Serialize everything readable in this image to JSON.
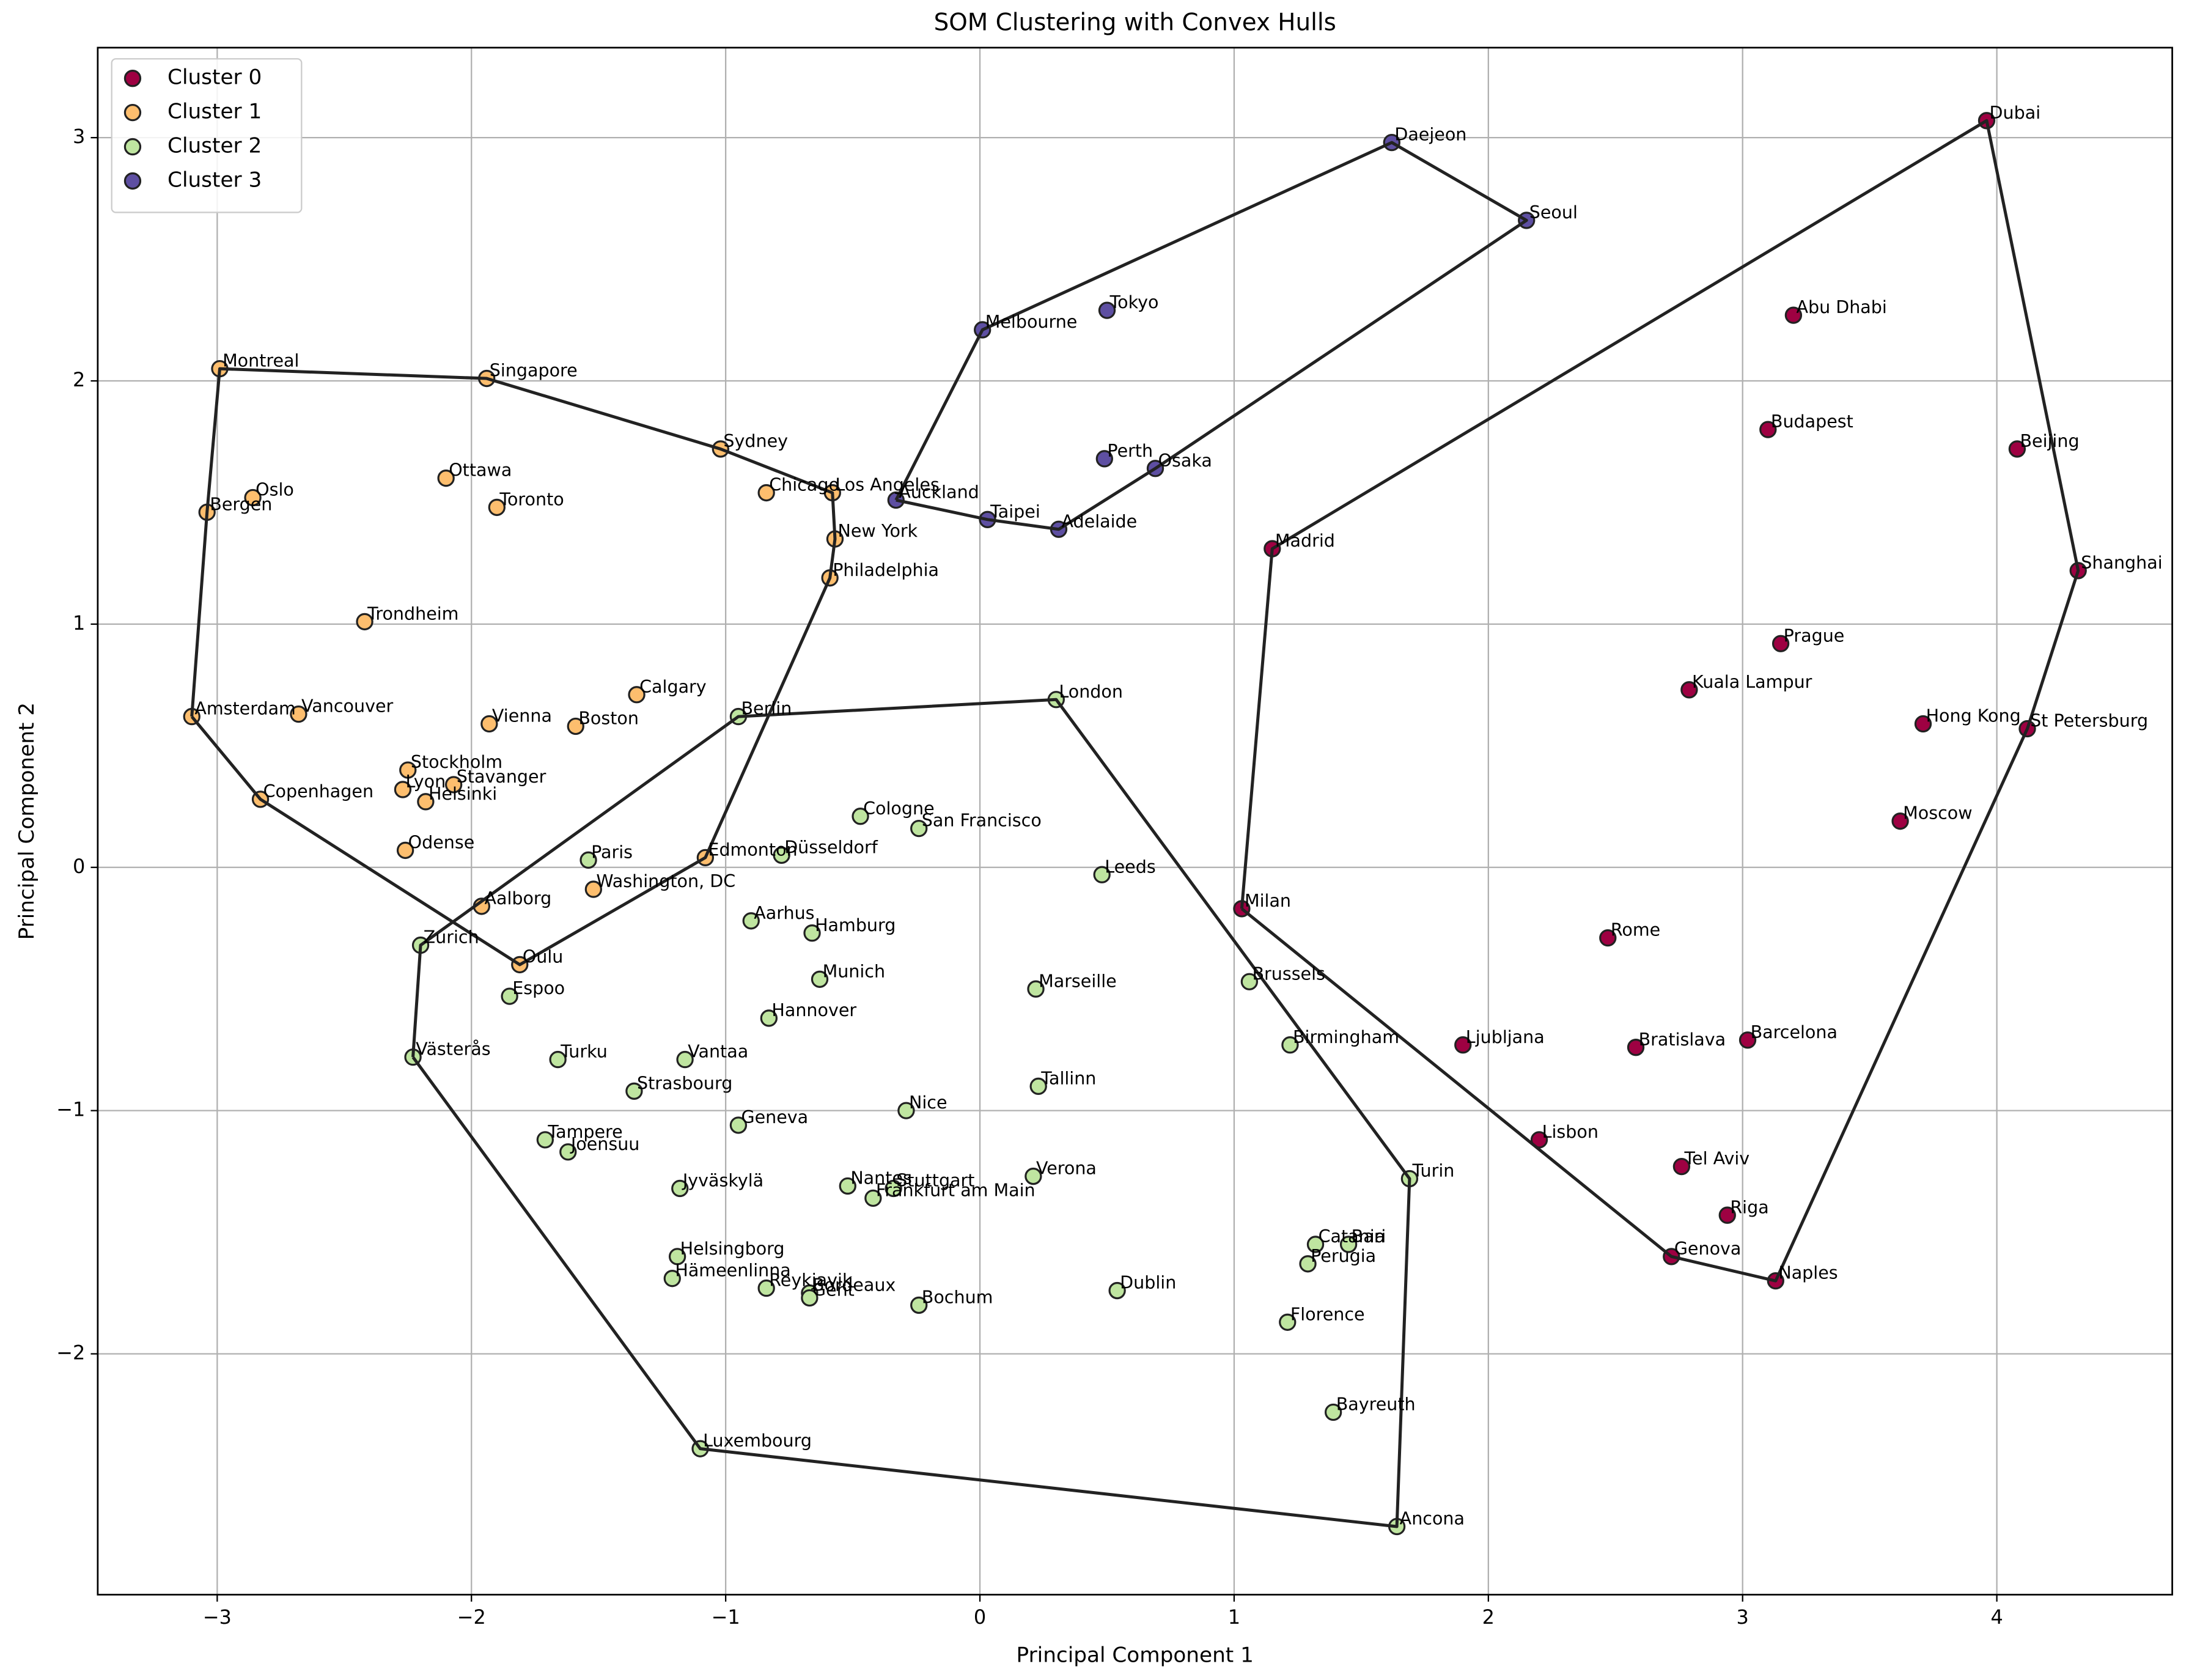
{
  "chart_data": {
    "type": "scatter",
    "title": "SOM Clustering with Convex Hulls",
    "x_label": "Principal Component 1",
    "y_label": "Principal Component 2",
    "xlim": [
      -3.47,
      4.69
    ],
    "ylim": [
      -2.99,
      3.37
    ],
    "xticks": [
      {
        "value": -3,
        "label": "−3"
      },
      {
        "value": -2,
        "label": "−2"
      },
      {
        "value": -1,
        "label": "−1"
      },
      0,
      1,
      2,
      3,
      4
    ],
    "yticks": [
      {
        "value": -2,
        "label": "−2"
      },
      {
        "value": -1,
        "label": "−1"
      },
      0,
      1,
      2,
      3
    ],
    "grid": true,
    "legend": "upper left",
    "hull_color": "#222222",
    "series": [
      {
        "name": "Cluster 0",
        "color": "#9e0142",
        "labels": [
          "Dubai",
          "Abu Dhabi",
          "Budapest",
          "Beijing",
          "Shanghai",
          "Madrid",
          "Prague",
          "Kuala Lampur",
          "Hong Kong",
          "St Petersburg",
          "Moscow",
          "Milan",
          "Rome",
          "Ljubljana",
          "Bratislava",
          "Barcelona",
          "Lisbon",
          "Tel Aviv",
          "Riga",
          "Genova",
          "Naples"
        ],
        "x": [
          3.96,
          3.2,
          3.1,
          4.08,
          4.32,
          1.15,
          3.15,
          2.79,
          3.71,
          4.12,
          3.62,
          1.03,
          2.47,
          1.9,
          2.58,
          3.02,
          2.2,
          2.76,
          2.94,
          2.72,
          3.13
        ],
        "y": [
          3.07,
          2.27,
          1.8,
          1.72,
          1.22,
          1.31,
          0.92,
          0.73,
          0.59,
          0.57,
          0.19,
          -0.17,
          -0.29,
          -0.73,
          -0.74,
          -0.71,
          -1.12,
          -1.23,
          -1.43,
          -1.6,
          -1.7
        ]
      },
      {
        "name": "Cluster 1",
        "color": "#fdbe6e",
        "labels": [
          "Montreal",
          "Singapore",
          "Sydney",
          "Oslo",
          "Bergen",
          "Ottawa",
          "Toronto",
          "Chicago",
          "Los Angeles",
          "New York",
          "Philadelphia",
          "Trondheim",
          "Calgary",
          "Amsterdam",
          "Vancouver",
          "Vienna",
          "Boston",
          "Stockholm",
          "Lyon",
          "Stavanger",
          "Helsinki",
          "Copenhagen",
          "Odense",
          "Edmonton",
          "Aalborg",
          "Washington, DC",
          "Oulu"
        ],
        "x": [
          -2.99,
          -1.94,
          -1.02,
          -2.86,
          -3.04,
          -2.1,
          -1.9,
          -0.84,
          -0.58,
          -0.57,
          -0.59,
          -2.42,
          -1.35,
          -3.1,
          -2.68,
          -1.93,
          -1.59,
          -2.25,
          -2.27,
          -2.07,
          -2.18,
          -2.83,
          -2.26,
          -1.08,
          -1.96,
          -1.52,
          -1.81
        ],
        "y": [
          2.05,
          2.01,
          1.72,
          1.52,
          1.46,
          1.6,
          1.48,
          1.54,
          1.54,
          1.35,
          1.19,
          1.01,
          0.71,
          0.62,
          0.63,
          0.59,
          0.58,
          0.4,
          0.32,
          0.34,
          0.27,
          0.28,
          0.07,
          0.04,
          -0.16,
          -0.09,
          -0.4
        ]
      },
      {
        "name": "Cluster 2",
        "color": "#bfe5a0",
        "labels": [
          "Berlin",
          "London",
          "Cologne",
          "San Francisco",
          "Düsseldorf",
          "Paris",
          "Leeds",
          "Zurich",
          "Aarhus",
          "Hamburg",
          "Munich",
          "Espoo",
          "Brussels",
          "Marseille",
          "Hannover",
          "Västerås",
          "Turku",
          "Vantaa",
          "Birmingham",
          "Tallinn",
          "Strasbourg",
          "Nice",
          "Geneva",
          "Tampere",
          "Joensuu",
          "Verona",
          "Turin",
          "Jyväskylä",
          "Nantes",
          "Stuttgart",
          "Frankfurt am Main",
          "Catania",
          "Bari",
          "Perugia",
          "Helsingborg",
          "Hämeenlinna",
          "Reykjavik",
          "Bordeaux",
          "Gent",
          "Bochum",
          "Dublin",
          "Florence",
          "Bayreuth",
          "Luxembourg",
          "Ancona"
        ],
        "x": [
          -0.95,
          0.3,
          -0.47,
          -0.24,
          -0.78,
          -1.54,
          0.48,
          -2.2,
          -0.9,
          -0.66,
          -0.63,
          -1.85,
          1.06,
          0.22,
          -0.83,
          -2.23,
          -1.66,
          -1.16,
          1.22,
          0.23,
          -1.36,
          -0.29,
          -0.95,
          -1.71,
          -1.62,
          0.21,
          1.69,
          -1.18,
          -0.52,
          -0.34,
          -0.42,
          1.32,
          1.45,
          1.29,
          -1.19,
          -1.21,
          -0.84,
          -0.67,
          -0.67,
          -0.24,
          0.54,
          1.21,
          1.39,
          -1.1,
          1.64
        ],
        "y": [
          0.62,
          0.69,
          0.21,
          0.16,
          0.05,
          0.03,
          -0.03,
          -0.32,
          -0.22,
          -0.27,
          -0.46,
          -0.53,
          -0.47,
          -0.5,
          -0.62,
          -0.78,
          -0.79,
          -0.79,
          -0.73,
          -0.9,
          -0.92,
          -1.0,
          -1.06,
          -1.12,
          -1.17,
          -1.27,
          -1.28,
          -1.32,
          -1.31,
          -1.32,
          -1.36,
          -1.55,
          -1.55,
          -1.63,
          -1.6,
          -1.69,
          -1.73,
          -1.75,
          -1.77,
          -1.8,
          -1.74,
          -1.87,
          -2.24,
          -2.39,
          -2.71
        ]
      },
      {
        "name": "Cluster 3",
        "color": "#5e4fa2",
        "labels": [
          "Daejeon",
          "Seoul",
          "Melbourne",
          "Tokyo",
          "Perth",
          "Osaka",
          "Auckland",
          "Taipei",
          "Adelaide"
        ],
        "x": [
          1.62,
          2.15,
          0.01,
          0.5,
          0.49,
          0.69,
          -0.33,
          0.03,
          0.31
        ],
        "y": [
          2.98,
          2.66,
          2.21,
          2.29,
          1.68,
          1.64,
          1.51,
          1.43,
          1.39
        ]
      }
    ]
  }
}
